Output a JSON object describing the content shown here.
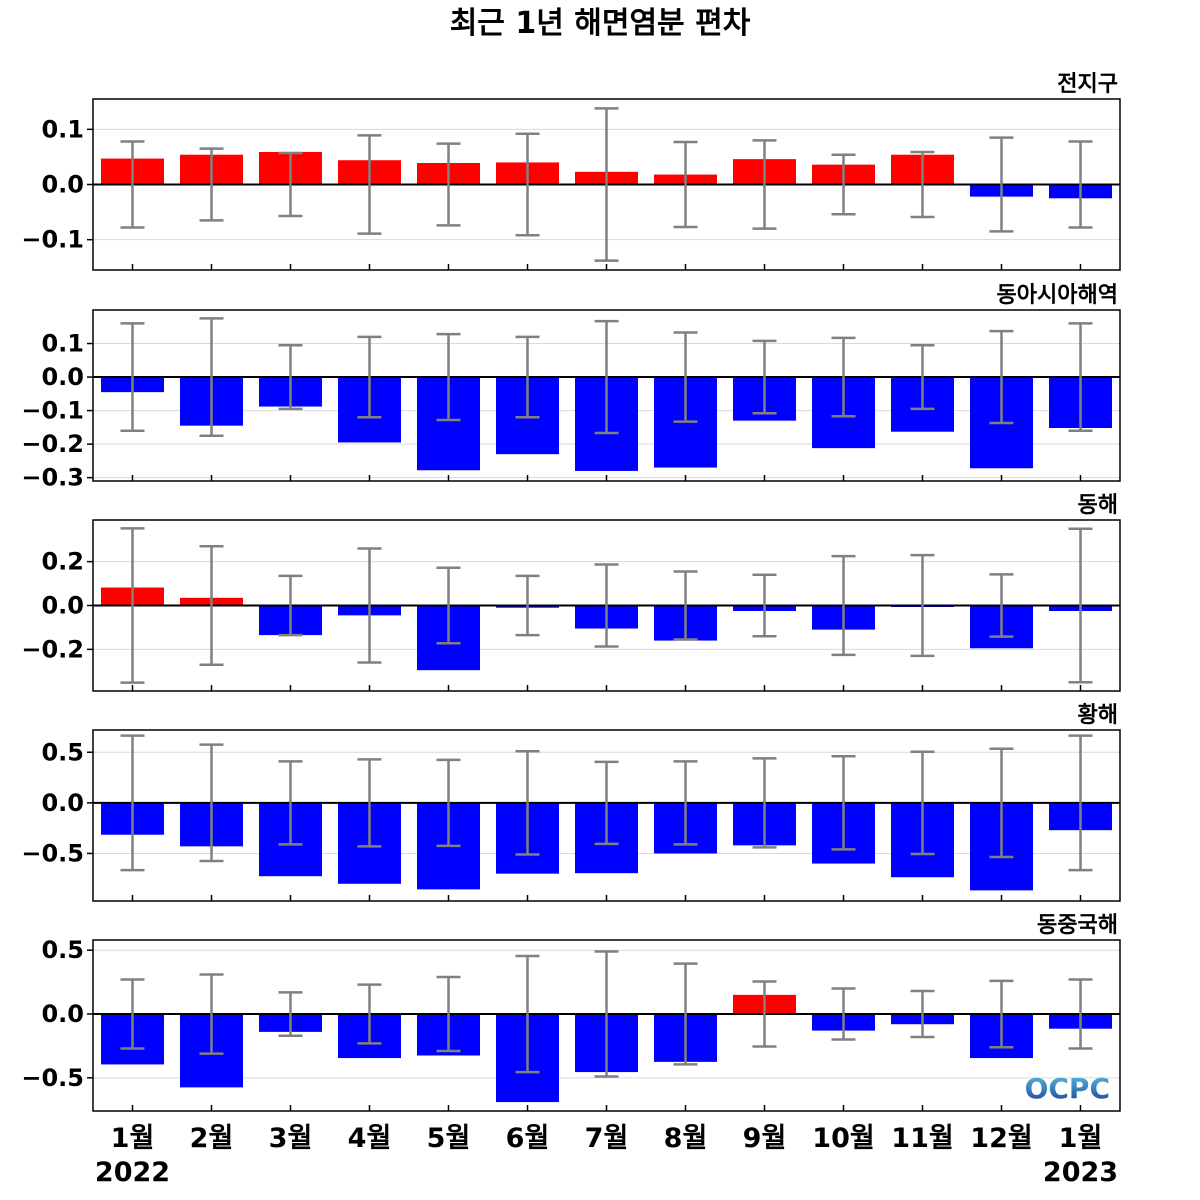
{
  "title": "최근 1년 해면염분 편차",
  "months": [
    "1월",
    "2월",
    "3월",
    "4월",
    "5월",
    "6월",
    "7월",
    "8월",
    "9월",
    "10월",
    "11월",
    "12월",
    "1월"
  ],
  "years": {
    "start": "2022",
    "end": "2023"
  },
  "logo": {
    "text": "OCPC",
    "color_top": "#5bc0e8",
    "color_bottom": "#1d3f8f"
  },
  "colors": {
    "positive": "#ff0000",
    "negative": "#0000ff",
    "errorbar": "#808080",
    "zero_line": "#000000",
    "grid": "#d9d9d9"
  },
  "chart_data": [
    {
      "type": "bar",
      "name": "전지구",
      "categories": [
        "1월",
        "2월",
        "3월",
        "4월",
        "5월",
        "6월",
        "7월",
        "8월",
        "9월",
        "10월",
        "11월",
        "12월",
        "1월"
      ],
      "values": [
        0.047,
        0.054,
        0.059,
        0.044,
        0.039,
        0.04,
        0.023,
        0.018,
        0.046,
        0.036,
        0.054,
        -0.022,
        -0.025
      ],
      "error": [
        0.078,
        0.065,
        0.057,
        0.089,
        0.074,
        0.092,
        0.138,
        0.077,
        0.08,
        0.054,
        0.059,
        0.085,
        0.078
      ],
      "ylim": [
        -0.155,
        0.155
      ],
      "yticks": [
        0.1,
        0.0,
        -0.1
      ],
      "ytick_labels": [
        "0.1",
        "0.0",
        "−0.1"
      ],
      "grid": true
    },
    {
      "type": "bar",
      "name": "동아시아해역",
      "categories": [
        "1월",
        "2월",
        "3월",
        "4월",
        "5월",
        "6월",
        "7월",
        "8월",
        "9월",
        "10월",
        "11월",
        "12월",
        "1월"
      ],
      "values": [
        -0.045,
        -0.145,
        -0.088,
        -0.195,
        -0.278,
        -0.23,
        -0.28,
        -0.27,
        -0.13,
        -0.212,
        -0.163,
        -0.272,
        -0.152
      ],
      "error": [
        0.16,
        0.175,
        0.095,
        0.12,
        0.128,
        0.12,
        0.167,
        0.133,
        0.108,
        0.117,
        0.095,
        0.137,
        0.16
      ],
      "ylim": [
        -0.31,
        0.2
      ],
      "yticks": [
        0.1,
        0.0,
        -0.1,
        -0.2,
        -0.3
      ],
      "ytick_labels": [
        "0.1",
        "0.0",
        "−0.1",
        "−0.2",
        "−0.3"
      ],
      "grid": true
    },
    {
      "type": "bar",
      "name": "동해",
      "categories": [
        "1월",
        "2월",
        "3월",
        "4월",
        "5월",
        "6월",
        "7월",
        "8월",
        "9월",
        "10월",
        "11월",
        "12월",
        "1월"
      ],
      "values": [
        0.082,
        0.035,
        -0.135,
        -0.045,
        -0.295,
        -0.01,
        -0.105,
        -0.16,
        -0.025,
        -0.11,
        -0.005,
        -0.195,
        -0.025
      ],
      "error": [
        0.352,
        0.27,
        0.135,
        0.26,
        0.172,
        0.135,
        0.187,
        0.155,
        0.14,
        0.225,
        0.23,
        0.142,
        0.35
      ],
      "ylim": [
        -0.39,
        0.39
      ],
      "yticks": [
        0.2,
        0.0,
        -0.2
      ],
      "ytick_labels": [
        "0.2",
        "0.0",
        "−0.2"
      ],
      "grid": true
    },
    {
      "type": "bar",
      "name": "황해",
      "categories": [
        "1월",
        "2월",
        "3월",
        "4월",
        "5월",
        "6월",
        "7월",
        "8월",
        "9월",
        "10월",
        "11월",
        "12월",
        "1월"
      ],
      "values": [
        -0.315,
        -0.43,
        -0.725,
        -0.8,
        -0.855,
        -0.7,
        -0.695,
        -0.5,
        -0.42,
        -0.6,
        -0.735,
        -0.865,
        -0.27
      ],
      "error": [
        0.665,
        0.575,
        0.41,
        0.43,
        0.425,
        0.51,
        0.405,
        0.41,
        0.44,
        0.46,
        0.505,
        0.535,
        0.665
      ],
      "ylim": [
        -0.97,
        0.72
      ],
      "yticks": [
        0.5,
        0.0,
        -0.5
      ],
      "ytick_labels": [
        "0.5",
        "0.0",
        "−0.5"
      ],
      "grid": true
    },
    {
      "type": "bar",
      "name": "동중국해",
      "categories": [
        "1월",
        "2월",
        "3월",
        "4월",
        "5월",
        "6월",
        "7월",
        "8월",
        "9월",
        "10월",
        "11월",
        "12월",
        "1월"
      ],
      "values": [
        -0.395,
        -0.575,
        -0.14,
        -0.345,
        -0.325,
        -0.69,
        -0.455,
        -0.375,
        0.15,
        -0.13,
        -0.08,
        -0.345,
        -0.115
      ],
      "error": [
        0.27,
        0.31,
        0.17,
        0.23,
        0.29,
        0.455,
        0.49,
        0.395,
        0.255,
        0.2,
        0.18,
        0.26,
        0.27
      ],
      "ylim": [
        -0.76,
        0.58
      ],
      "yticks": [
        0.5,
        0.0,
        -0.5
      ],
      "ytick_labels": [
        "0.5",
        "0.0",
        "−0.5"
      ],
      "grid": true
    }
  ]
}
